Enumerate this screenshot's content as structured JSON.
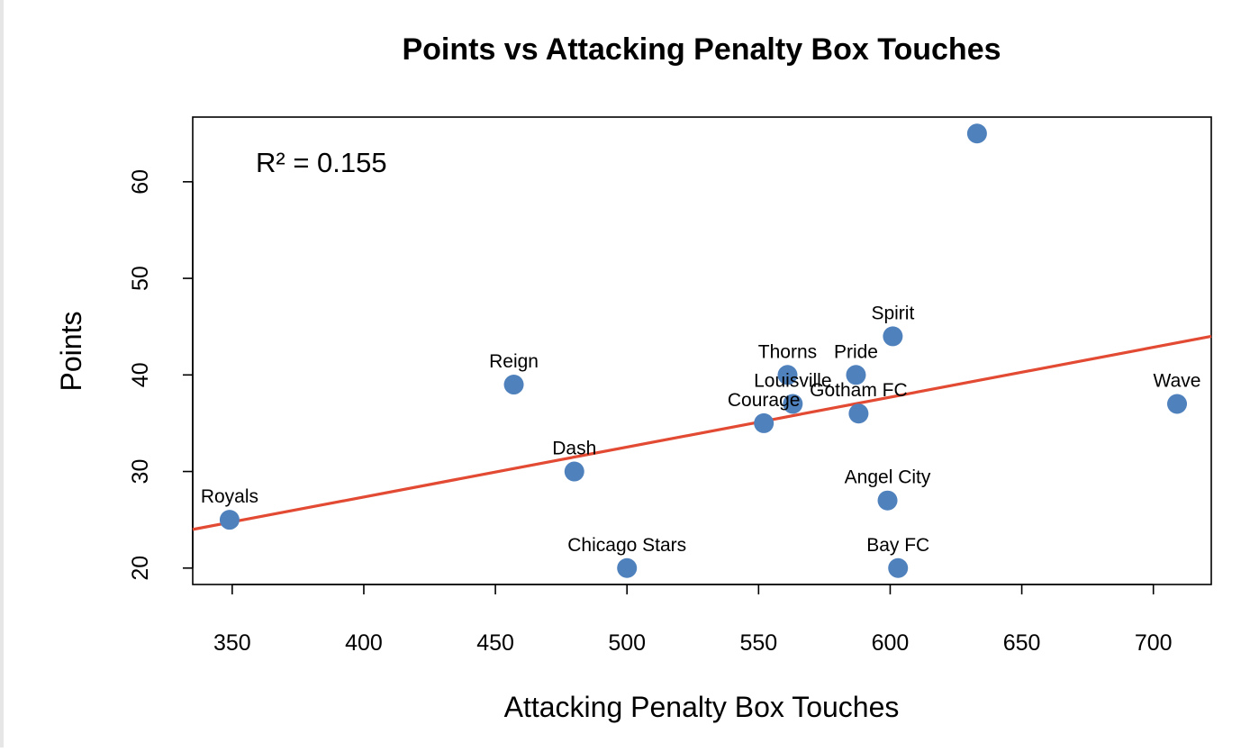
{
  "chart_data": {
    "type": "scatter",
    "title": "Points vs Attacking Penalty Box Touches",
    "xlabel": "Attacking Penalty Box Touches",
    "ylabel": "Points",
    "xlim": [
      335,
      722
    ],
    "ylim": [
      18.3,
      66.7
    ],
    "xticks": [
      350,
      400,
      450,
      500,
      550,
      600,
      650,
      700
    ],
    "yticks": [
      20,
      30,
      40,
      50,
      60
    ],
    "annotation": "R² = 0.155",
    "grid": false,
    "point_color": "#4f81bd",
    "points": [
      {
        "label": "Royals",
        "x": 349,
        "y": 25
      },
      {
        "label": "Reign",
        "x": 457,
        "y": 39
      },
      {
        "label": "Dash",
        "x": 480,
        "y": 30
      },
      {
        "label": "Chicago Stars",
        "x": 500,
        "y": 20
      },
      {
        "label": "Courage",
        "x": 552,
        "y": 35
      },
      {
        "label": "Thorns",
        "x": 561,
        "y": 40
      },
      {
        "label": "Louisville",
        "x": 563,
        "y": 37
      },
      {
        "label": "Pride",
        "x": 587,
        "y": 40
      },
      {
        "label": "Gotham FC",
        "x": 588,
        "y": 36
      },
      {
        "label": "Angel City",
        "x": 599,
        "y": 27
      },
      {
        "label": "Spirit",
        "x": 601,
        "y": 44
      },
      {
        "label": "Bay FC",
        "x": 603,
        "y": 20
      },
      {
        "label": "",
        "x": 633,
        "y": 65
      },
      {
        "label": "Wave",
        "x": 709,
        "y": 37
      }
    ],
    "trendline": {
      "color": "#e34a33",
      "x": [
        335,
        722
      ],
      "y": [
        24.0,
        44.0
      ]
    }
  }
}
